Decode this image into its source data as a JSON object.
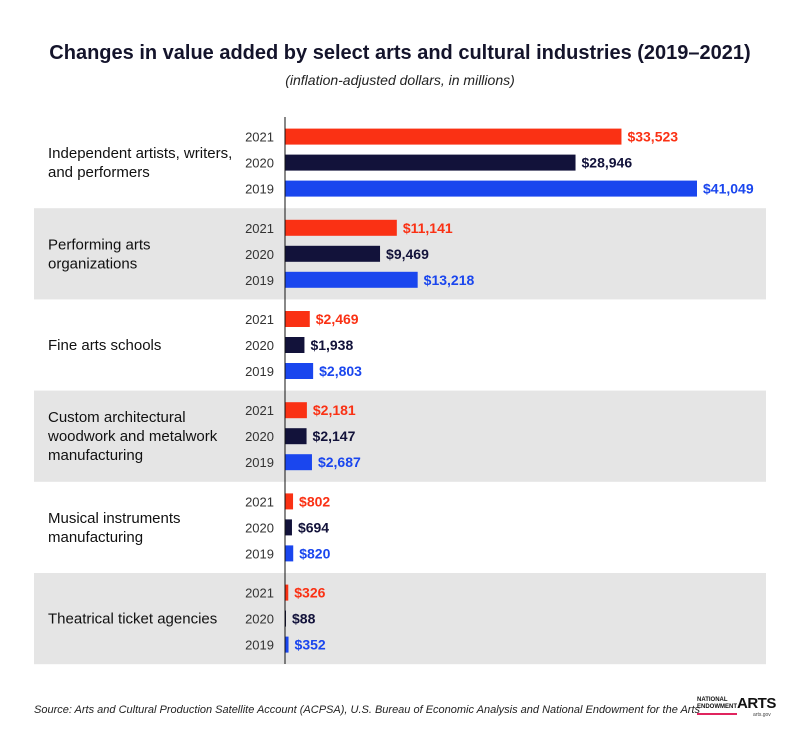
{
  "title": "Changes in value added by select arts and cultural industries (2019–2021)",
  "subtitle": "(inflation-adjusted dollars, in millions)",
  "source": "Source: Arts and Cultural Production Satellite Account (ACPSA), U.S. Bureau of Economic Analysis and National Endowment for the Arts",
  "logo": {
    "line1": "NATIONAL",
    "line2": "ENDOWMENT",
    "for_the": "FOR THE",
    "arts": "ARTS",
    "url": "arts.gov"
  },
  "colors": {
    "2021": "#fa3114",
    "2020": "#12123a",
    "2019": "#1a46ee",
    "band": "#e5e5e5"
  },
  "chart_data": {
    "type": "bar",
    "orientation": "horizontal",
    "years": [
      "2021",
      "2020",
      "2019"
    ],
    "categories": [
      {
        "name": [
          "Independent artists, writers,",
          "and performers"
        ],
        "values": [
          33523,
          28946,
          41049
        ],
        "labels": [
          "$33,523",
          "$28,946",
          "$41,049"
        ]
      },
      {
        "name": [
          "Performing arts",
          "organizations"
        ],
        "values": [
          11141,
          9469,
          13218
        ],
        "labels": [
          "$11,141",
          "$9,469",
          "$13,218"
        ]
      },
      {
        "name": [
          "Fine arts schools"
        ],
        "values": [
          2469,
          1938,
          2803
        ],
        "labels": [
          "$2,469",
          "$1,938",
          "$2,803"
        ]
      },
      {
        "name": [
          "Custom architectural",
          "woodwork and metalwork",
          "manufacturing"
        ],
        "values": [
          2181,
          2147,
          2687
        ],
        "labels": [
          "$2,181",
          "$2,147",
          "$2,687"
        ]
      },
      {
        "name": [
          "Musical instruments",
          "manufacturing"
        ],
        "values": [
          802,
          694,
          820
        ],
        "labels": [
          "$802",
          "$694",
          "$820"
        ]
      },
      {
        "name": [
          "Theatrical ticket agencies"
        ],
        "values": [
          326,
          88,
          352
        ],
        "labels": [
          "$326",
          "$88",
          "$352"
        ]
      }
    ],
    "xlim": [
      0,
      41049
    ]
  }
}
